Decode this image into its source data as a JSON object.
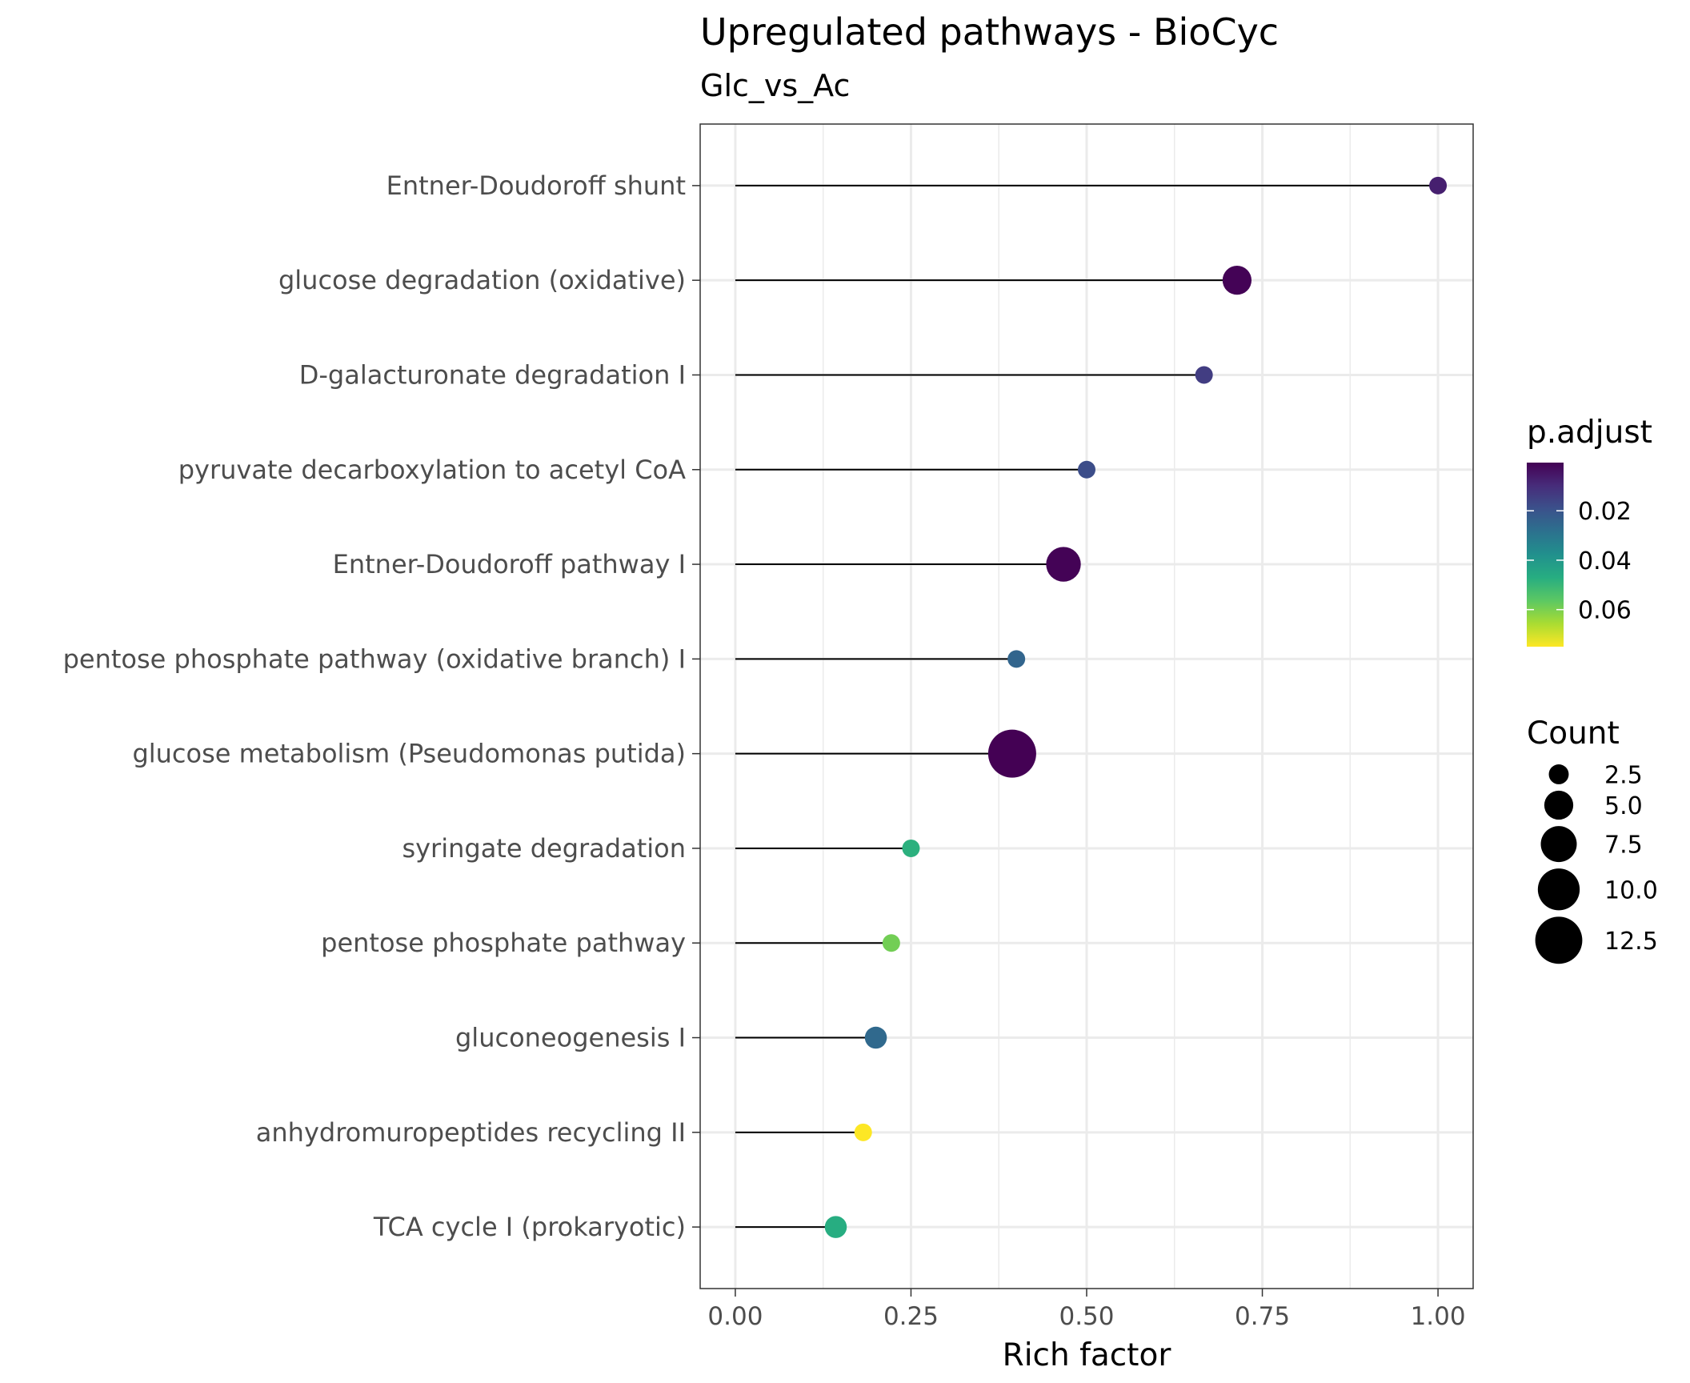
{
  "chart_data": {
    "type": "scatter",
    "style": "lollipop",
    "title": "Upregulated pathways - BioCyc",
    "subtitle": "Glc_vs_Ac",
    "xlabel": "Rich factor",
    "ylabel": "",
    "xlim": [
      -0.05,
      1.05
    ],
    "x_ticks": [
      0.0,
      0.25,
      0.5,
      0.75,
      1.0
    ],
    "x_tick_labels": [
      "0.00",
      "0.25",
      "0.50",
      "0.75",
      "1.00"
    ],
    "grid": true,
    "categories": [
      "Entner-Doudoroff shunt",
      "glucose degradation (oxidative)",
      "D-galacturonate degradation I",
      "pyruvate decarboxylation to acetyl CoA",
      "Entner-Doudoroff pathway I",
      "pentose phosphate pathway (oxidative branch) I",
      "glucose metabolism (Pseudomonas putida)",
      "syringate degradation",
      "pentose phosphate pathway",
      "gluconeogenesis I",
      "anhydromuropeptides recycling II",
      "TCA cycle I (prokaryotic)"
    ],
    "points": [
      {
        "category": "Entner-Doudoroff shunt",
        "rich_factor": 1.0,
        "count": 2,
        "p_adjust": 0.007
      },
      {
        "category": "glucose degradation (oxidative)",
        "rich_factor": 0.714,
        "count": 5,
        "p_adjust": 0.001
      },
      {
        "category": "D-galacturonate degradation I",
        "rich_factor": 0.667,
        "count": 2,
        "p_adjust": 0.014
      },
      {
        "category": "pyruvate decarboxylation to acetyl CoA",
        "rich_factor": 0.5,
        "count": 2,
        "p_adjust": 0.018
      },
      {
        "category": "Entner-Doudoroff pathway I",
        "rich_factor": 0.467,
        "count": 7,
        "p_adjust": 0.001
      },
      {
        "category": "pentose phosphate pathway (oxidative branch) I",
        "rich_factor": 0.4,
        "count": 2,
        "p_adjust": 0.025
      },
      {
        "category": "glucose metabolism (Pseudomonas putida)",
        "rich_factor": 0.394,
        "count": 13,
        "p_adjust": 0.0005
      },
      {
        "category": "syringate degradation",
        "rich_factor": 0.25,
        "count": 2,
        "p_adjust": 0.048
      },
      {
        "category": "pentose phosphate pathway",
        "rich_factor": 0.222,
        "count": 2,
        "p_adjust": 0.059
      },
      {
        "category": "gluconeogenesis I",
        "rich_factor": 0.2,
        "count": 3,
        "p_adjust": 0.026
      },
      {
        "category": "anhydromuropeptides recycling II",
        "rich_factor": 0.182,
        "count": 2,
        "p_adjust": 0.075
      },
      {
        "category": "TCA cycle I (prokaryotic)",
        "rich_factor": 0.143,
        "count": 3,
        "p_adjust": 0.047
      }
    ],
    "color_legend": {
      "title": "p.adjust",
      "domain": [
        0.0005,
        0.075
      ],
      "ticks": [
        0.02,
        0.04,
        0.06
      ],
      "tick_labels": [
        "0.02",
        "0.04",
        "0.06"
      ],
      "palette": [
        "#440154",
        "#472c7a",
        "#3b518b",
        "#2c718e",
        "#21908d",
        "#27ad81",
        "#5cc863",
        "#aadc32",
        "#fde725"
      ]
    },
    "size_legend": {
      "title": "Count",
      "values": [
        2.5,
        5.0,
        7.5,
        10.0,
        12.5
      ],
      "labels": [
        "2.5",
        "5.0",
        "7.5",
        "10.0",
        "12.5"
      ],
      "size_range": [
        2,
        13
      ]
    }
  }
}
